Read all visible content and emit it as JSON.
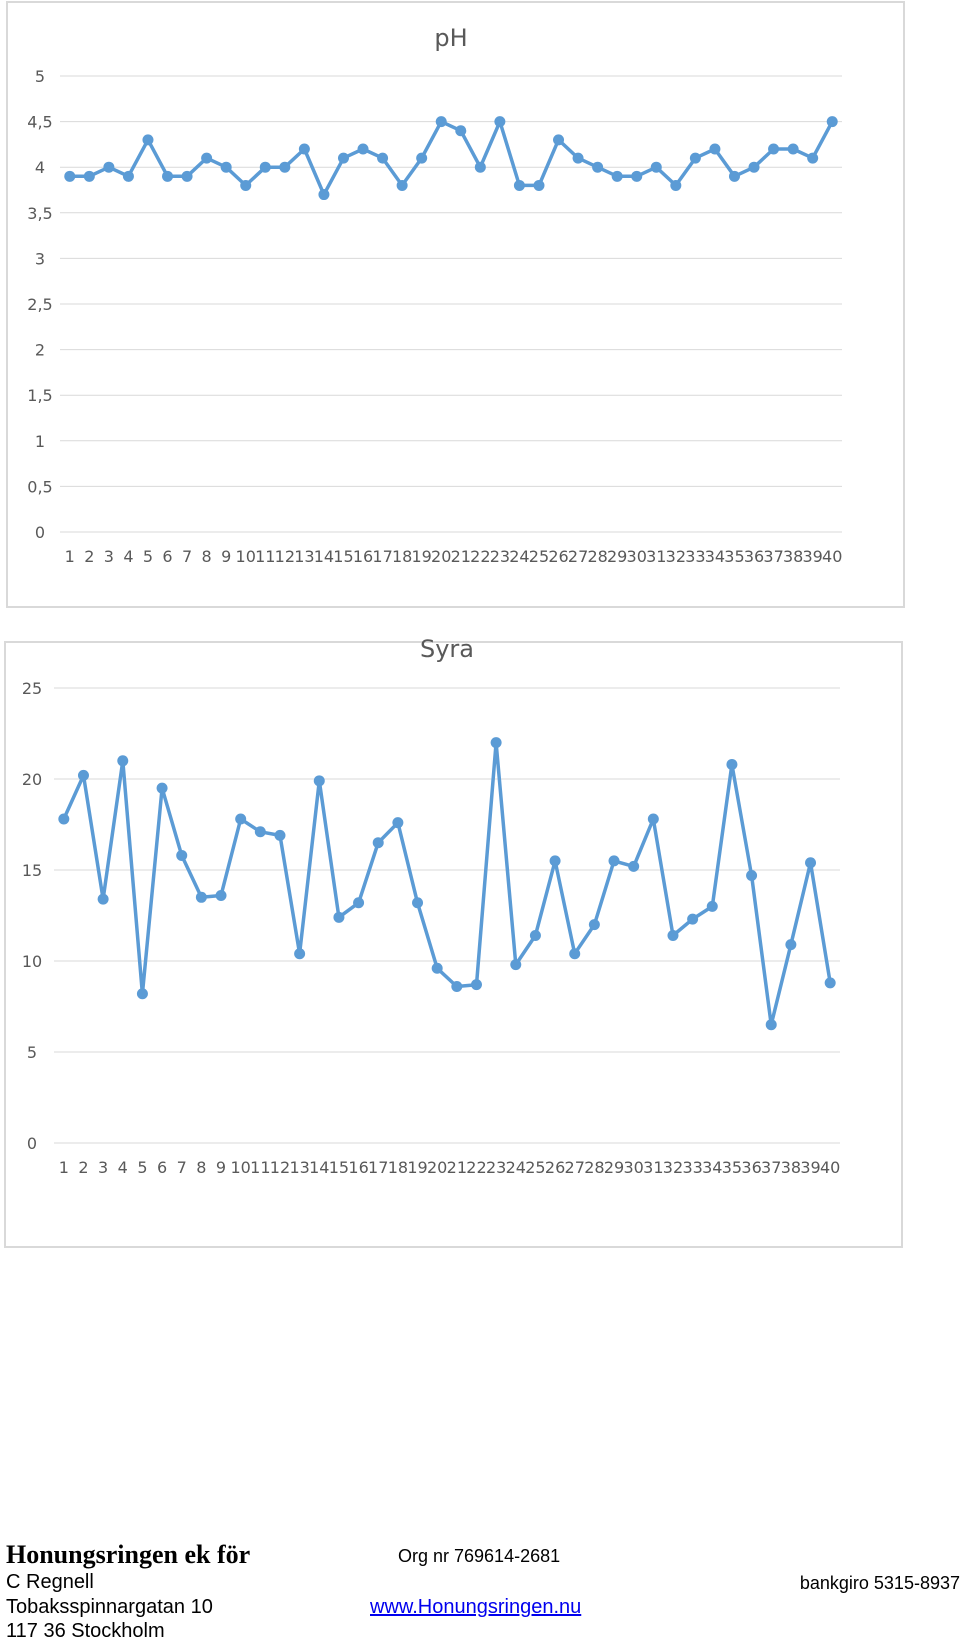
{
  "chart_data": [
    {
      "type": "line",
      "title": "pH",
      "categories": [
        "1",
        "2",
        "3",
        "4",
        "5",
        "6",
        "7",
        "8",
        "9",
        "10",
        "11",
        "12",
        "13",
        "14",
        "15",
        "16",
        "17",
        "18",
        "19",
        "20",
        "21",
        "22",
        "23",
        "24",
        "25",
        "26",
        "27",
        "28",
        "29",
        "30",
        "31",
        "32",
        "33",
        "34",
        "35",
        "36",
        "37",
        "38",
        "39",
        "40"
      ],
      "values": [
        3.9,
        3.9,
        4.0,
        3.9,
        4.3,
        3.9,
        3.9,
        4.1,
        4.0,
        3.8,
        4.0,
        4.0,
        4.2,
        3.7,
        4.1,
        4.2,
        4.1,
        3.8,
        4.1,
        4.5,
        4.4,
        4.0,
        4.5,
        3.8,
        3.8,
        4.3,
        4.1,
        4.0,
        3.9,
        3.9,
        4.0,
        3.8,
        4.1,
        4.2,
        3.9,
        4.0,
        4.2,
        4.2,
        4.1,
        4.5
      ],
      "yticks": [
        0,
        0.5,
        1,
        1.5,
        2,
        2.5,
        3,
        3.5,
        4,
        4.5,
        5
      ],
      "ytick_labels": [
        "0",
        "0,5",
        "1",
        "1,5",
        "2",
        "2,5",
        "3",
        "3,5",
        "4",
        "4,5",
        "5"
      ],
      "ylim": [
        0,
        5
      ],
      "grid": true,
      "color": "#5b9bd5"
    },
    {
      "type": "line",
      "title": "Syra",
      "categories": [
        "1",
        "2",
        "3",
        "4",
        "5",
        "6",
        "7",
        "8",
        "9",
        "10",
        "11",
        "12",
        "13",
        "14",
        "15",
        "16",
        "17",
        "18",
        "19",
        "20",
        "21",
        "22",
        "23",
        "24",
        "25",
        "26",
        "27",
        "28",
        "29",
        "30",
        "31",
        "32",
        "33",
        "34",
        "35",
        "36",
        "37",
        "38",
        "39",
        "40"
      ],
      "values": [
        17.8,
        20.2,
        13.4,
        21.0,
        8.2,
        19.5,
        15.8,
        13.5,
        13.6,
        17.8,
        17.1,
        16.9,
        10.4,
        19.9,
        12.4,
        13.2,
        16.5,
        17.6,
        13.2,
        9.6,
        8.6,
        8.7,
        22.0,
        9.8,
        11.4,
        15.5,
        10.4,
        12.0,
        15.5,
        15.2,
        17.8,
        11.4,
        12.3,
        13.0,
        20.8,
        14.7,
        6.5,
        10.9,
        15.4,
        8.8
      ],
      "yticks": [
        0,
        5,
        10,
        15,
        20,
        25
      ],
      "ytick_labels": [
        "0",
        "5",
        "10",
        "15",
        "20",
        "25"
      ],
      "ylim": [
        0,
        25
      ],
      "grid": true,
      "color": "#5b9bd5"
    }
  ],
  "footer": {
    "org_name": "Honungsringen ek för",
    "org_nr": "Org nr 769614-2681",
    "contact": "C Regnell",
    "bankgiro": "bankgiro 5315-8937",
    "street": "Tobaksspinnargatan 10",
    "website": "www.Honungsringen.nu",
    "city": "117 36 Stockholm"
  }
}
